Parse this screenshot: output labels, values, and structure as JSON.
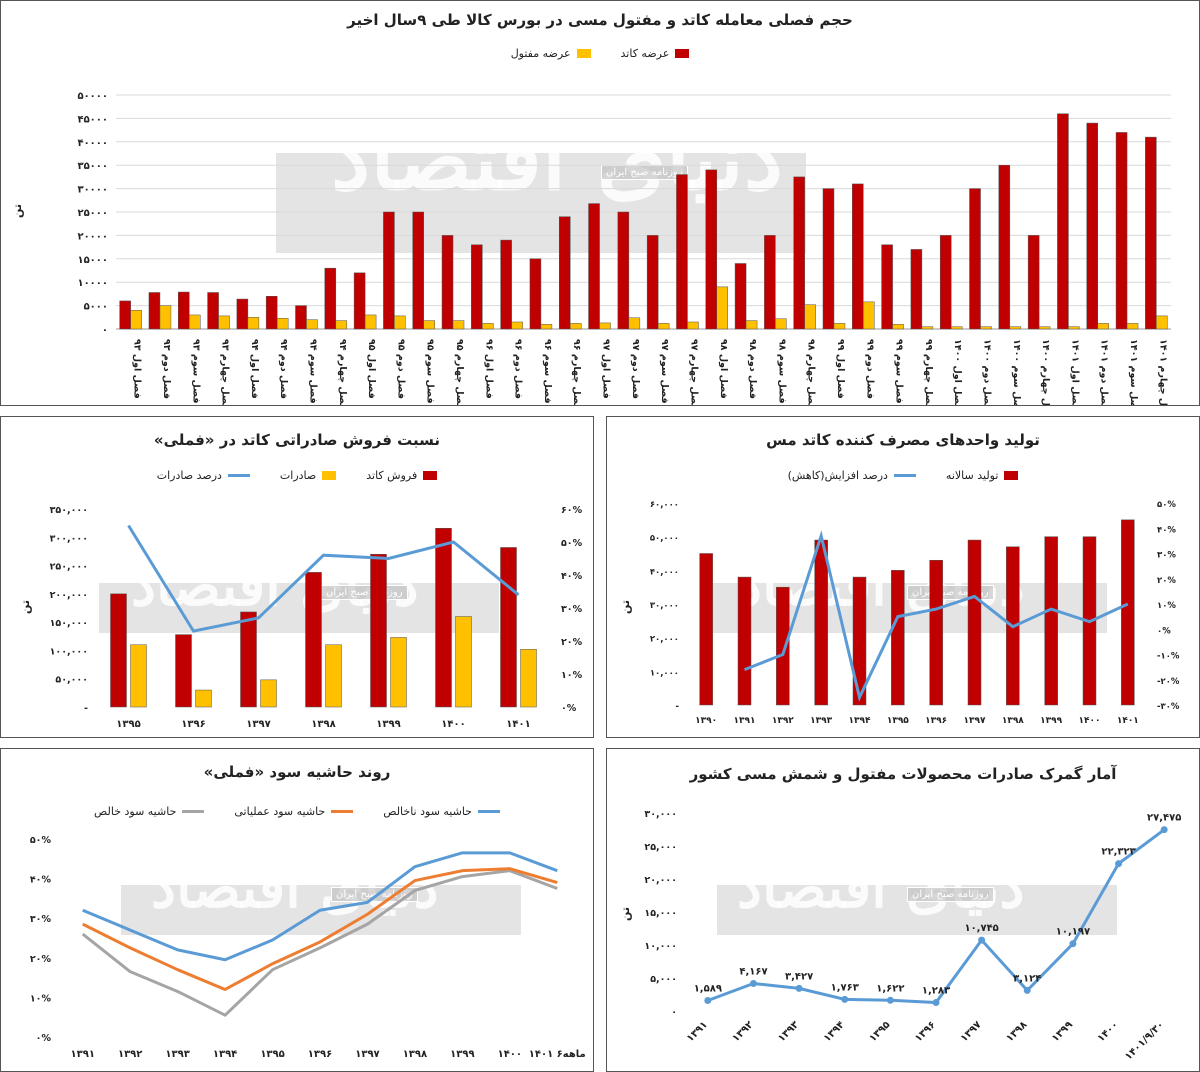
{
  "colors": {
    "red": "#C00000",
    "yellow": "#FFC000",
    "blue": "#5B9BD5",
    "orange": "#ED7D31",
    "gray": "#A5A5A5",
    "grid": "#D9D9D9"
  },
  "watermark": {
    "brand": "دنیای اقتصاد",
    "sub": "روزنامه صبح ایران"
  },
  "chart_data": [
    {
      "id": "quarterly",
      "type": "bar",
      "title": "حجم فصلی معامله کاتد و مفتول مسی در بورس کالا طی ۹سال اخیر",
      "ylabel": "تن",
      "ylim": [
        0,
        50000
      ],
      "yticks": [
        "۰",
        "۵۰۰۰",
        "۱۰۰۰۰",
        "۱۵۰۰۰",
        "۲۰۰۰۰",
        "۲۵۰۰۰",
        "۳۰۰۰۰",
        "۳۵۰۰۰",
        "۴۰۰۰۰",
        "۴۵۰۰۰",
        "۵۰۰۰۰"
      ],
      "grid": true,
      "legend": "top",
      "categories": [
        "فصل اول ۹۳",
        "فصل دوم ۹۳",
        "فصل سوم ۹۳",
        "فصل چهارم ۹۳",
        "فصل اول ۹۴",
        "فصل دوم ۹۴",
        "فصل سوم ۹۴",
        "فصل چهارم ۹۴",
        "فصل اول ۹۵",
        "فصل دوم ۹۵",
        "فصل سوم ۹۵",
        "فصل چهارم ۹۵",
        "فصل اول ۹۶",
        "فصل دوم ۹۶",
        "فصل سوم ۹۶",
        "فصل چهارم ۹۶",
        "فصل اول ۹۷",
        "فصل دوم ۹۷",
        "فصل سوم ۹۷",
        "فصل چهارم ۹۷",
        "فصل اول ۹۸",
        "فصل دوم ۹۸",
        "فصل سوم ۹۸",
        "فصل چهارم ۹۸",
        "فصل اول ۹۹",
        "فصل دوم ۹۹",
        "فصل سوم ۹۹",
        "فصل چهارم ۹۹",
        "فصل اول ۱۴۰۰",
        "فصل دوم ۱۴۰۰",
        "فصل سوم ۱۴۰۰",
        "فصل چهارم ۱۴۰۰",
        "فصل اول ۱۴۰۱",
        "فصل دوم ۱۴۰۱",
        "فصل سوم ۱۴۰۱",
        "فصل چهارم ۱۴۰۱"
      ],
      "series": [
        {
          "name": "عرضه کاتد",
          "color": "#C00000",
          "values": [
            6000,
            7800,
            7900,
            7800,
            6400,
            7000,
            5000,
            13000,
            12000,
            25000,
            25000,
            20000,
            18000,
            19000,
            15000,
            24000,
            26800,
            25000,
            20000,
            33000,
            34000,
            14000,
            20000,
            32500,
            30000,
            31000,
            18000,
            17000,
            20000,
            30000,
            35000,
            20000,
            46000,
            44000,
            42000,
            41000
          ]
        },
        {
          "name": "عرضه مفتول",
          "color": "#FFC000",
          "values": [
            4000,
            5000,
            3000,
            2800,
            2500,
            2300,
            2000,
            1800,
            3000,
            2800,
            1800,
            1800,
            1200,
            1500,
            1000,
            1200,
            1300,
            2400,
            1200,
            1500,
            9000,
            1800,
            2200,
            5200,
            1200,
            5800,
            1000,
            500,
            500,
            500,
            500,
            500,
            500,
            1200,
            1200,
            2800
          ]
        }
      ]
    },
    {
      "id": "export_ratio",
      "type": "bar",
      "title": "نسبت فروش صادراتی کاتد در «فملی»",
      "ylabel": "تن",
      "categories": [
        "۱۳۹۵",
        "۱۳۹۶",
        "۱۳۹۷",
        "۱۳۹۸",
        "۱۳۹۹",
        "۱۴۰۰",
        "۱۴۰۱"
      ],
      "ylim": [
        0,
        350000
      ],
      "y2lim": [
        0,
        60
      ],
      "yticks": [
        "-",
        "۵۰,۰۰۰",
        "۱۰۰,۰۰۰",
        "۱۵۰,۰۰۰",
        "۲۰۰,۰۰۰",
        "۲۵۰,۰۰۰",
        "۳۰۰,۰۰۰",
        "۳۵۰,۰۰۰"
      ],
      "y2ticks": [
        "۰%",
        "۱۰%",
        "۲۰%",
        "۳۰%",
        "۴۰%",
        "۵۰%",
        "۶۰%"
      ],
      "legend": "top",
      "series": [
        {
          "name": "فروش کاتد",
          "kind": "bar",
          "color": "#C00000",
          "values": [
            200000,
            128000,
            168000,
            238000,
            270000,
            316000,
            282000
          ]
        },
        {
          "name": "صادرات",
          "kind": "bar",
          "color": "#FFC000",
          "values": [
            110000,
            30000,
            48000,
            110000,
            123000,
            160000,
            102000
          ]
        },
        {
          "name": "درصد صادرات",
          "kind": "line",
          "axis": "right",
          "color": "#5B9BD5",
          "values": [
            55,
            23,
            27,
            46,
            45,
            50,
            34
          ]
        }
      ]
    },
    {
      "id": "consumers",
      "type": "bar",
      "title": "تولید واحدهای مصرف کننده کاتد مس",
      "ylabel": "تن",
      "categories": [
        "۱۳۹۰",
        "۱۳۹۱",
        "۱۳۹۲",
        "۱۳۹۳",
        "۱۳۹۴",
        "۱۳۹۵",
        "۱۳۹۶",
        "۱۳۹۷",
        "۱۳۹۸",
        "۱۳۹۹",
        "۱۴۰۰",
        "۱۴۰۱"
      ],
      "ylim": [
        0,
        60000
      ],
      "y2lim": [
        -30,
        50
      ],
      "yticks": [
        "-",
        "۱۰,۰۰۰",
        "۲۰,۰۰۰",
        "۳۰,۰۰۰",
        "۴۰,۰۰۰",
        "۵۰,۰۰۰",
        "۶۰,۰۰۰"
      ],
      "y2ticks": [
        "-۳۰%",
        "-۲۰%",
        "-۱۰%",
        "۰%",
        "۱۰%",
        "۲۰%",
        "۳۰%",
        "۴۰%",
        "۵۰%"
      ],
      "legend": "top",
      "series": [
        {
          "name": "تولید سالانه",
          "kind": "bar",
          "color": "#C00000",
          "values": [
            45000,
            38000,
            35000,
            49000,
            38000,
            40000,
            43000,
            49000,
            47000,
            50000,
            50000,
            55000
          ]
        },
        {
          "name": "درصد افزایش(کاهش)",
          "kind": "line",
          "axis": "right",
          "color": "#5B9BD5",
          "values": [
            null,
            -16,
            -10,
            37,
            -27,
            5,
            8,
            13,
            1,
            8,
            3,
            10
          ]
        }
      ]
    },
    {
      "id": "margins",
      "type": "line",
      "title": "روند حاشیه سود «فملی»",
      "categories": [
        "۱۳۹۱",
        "۱۳۹۲",
        "۱۳۹۳",
        "۱۳۹۴",
        "۱۳۹۵",
        "۱۳۹۶",
        "۱۳۹۷",
        "۱۳۹۸",
        "۱۳۹۹",
        "۱۴۰۰",
        "۱۴۰۱ ۶ماهه"
      ],
      "ylim": [
        0,
        50
      ],
      "yticks": [
        "۰%",
        "۱۰%",
        "۲۰%",
        "۳۰%",
        "۴۰%",
        "۵۰%"
      ],
      "legend": "top",
      "series": [
        {
          "name": "حاشیه سود ناخالص",
          "color": "#5B9BD5",
          "values": [
            32,
            27,
            22,
            19.5,
            24.5,
            32,
            34,
            43,
            46.5,
            46.5,
            42
          ]
        },
        {
          "name": "حاشیه سود عملیاتی",
          "color": "#ED7D31",
          "values": [
            28.5,
            22.5,
            17,
            12,
            18.5,
            24,
            31,
            39.5,
            42,
            42.5,
            39
          ]
        },
        {
          "name": "حاشیه سود خالص",
          "color": "#A5A5A5",
          "values": [
            26,
            16.5,
            11.5,
            5.5,
            17,
            22.5,
            28.5,
            37,
            40.5,
            42,
            37.5
          ]
        }
      ]
    },
    {
      "id": "customs",
      "type": "line",
      "title": "آمار گمرک صادرات محصولات مفتول و شمش مسی کشور",
      "ylabel": "تن",
      "categories": [
        "۱۳۹۱",
        "۱۳۹۲",
        "۱۳۹۳",
        "۱۳۹۴",
        "۱۳۹۵",
        "۱۳۹۶",
        "۱۳۹۷",
        "۱۳۹۸",
        "۱۳۹۹",
        "۱۴۰۰",
        "۱۴۰۱/۹/۳۰"
      ],
      "ylim": [
        0,
        30000
      ],
      "yticks": [
        "۰",
        "۵,۰۰۰",
        "۱۰,۰۰۰",
        "۱۵,۰۰۰",
        "۲۰,۰۰۰",
        "۲۵,۰۰۰",
        "۳۰,۰۰۰"
      ],
      "series": [
        {
          "name": "",
          "color": "#5B9BD5",
          "values": [
            1589,
            4167,
            3427,
            1763,
            1622,
            1283,
            10745,
            3124,
            10197,
            22323,
            27475
          ],
          "labels": [
            "۱,۵۸۹",
            "۴,۱۶۷",
            "۳,۴۲۷",
            "۱,۷۶۳",
            "۱,۶۲۲",
            "۱,۲۸۳",
            "۱۰,۷۴۵",
            "۳,۱۲۴",
            "۱۰,۱۹۷",
            "۲۲,۳۲۳",
            "۲۷,۴۷۵"
          ]
        }
      ]
    }
  ]
}
